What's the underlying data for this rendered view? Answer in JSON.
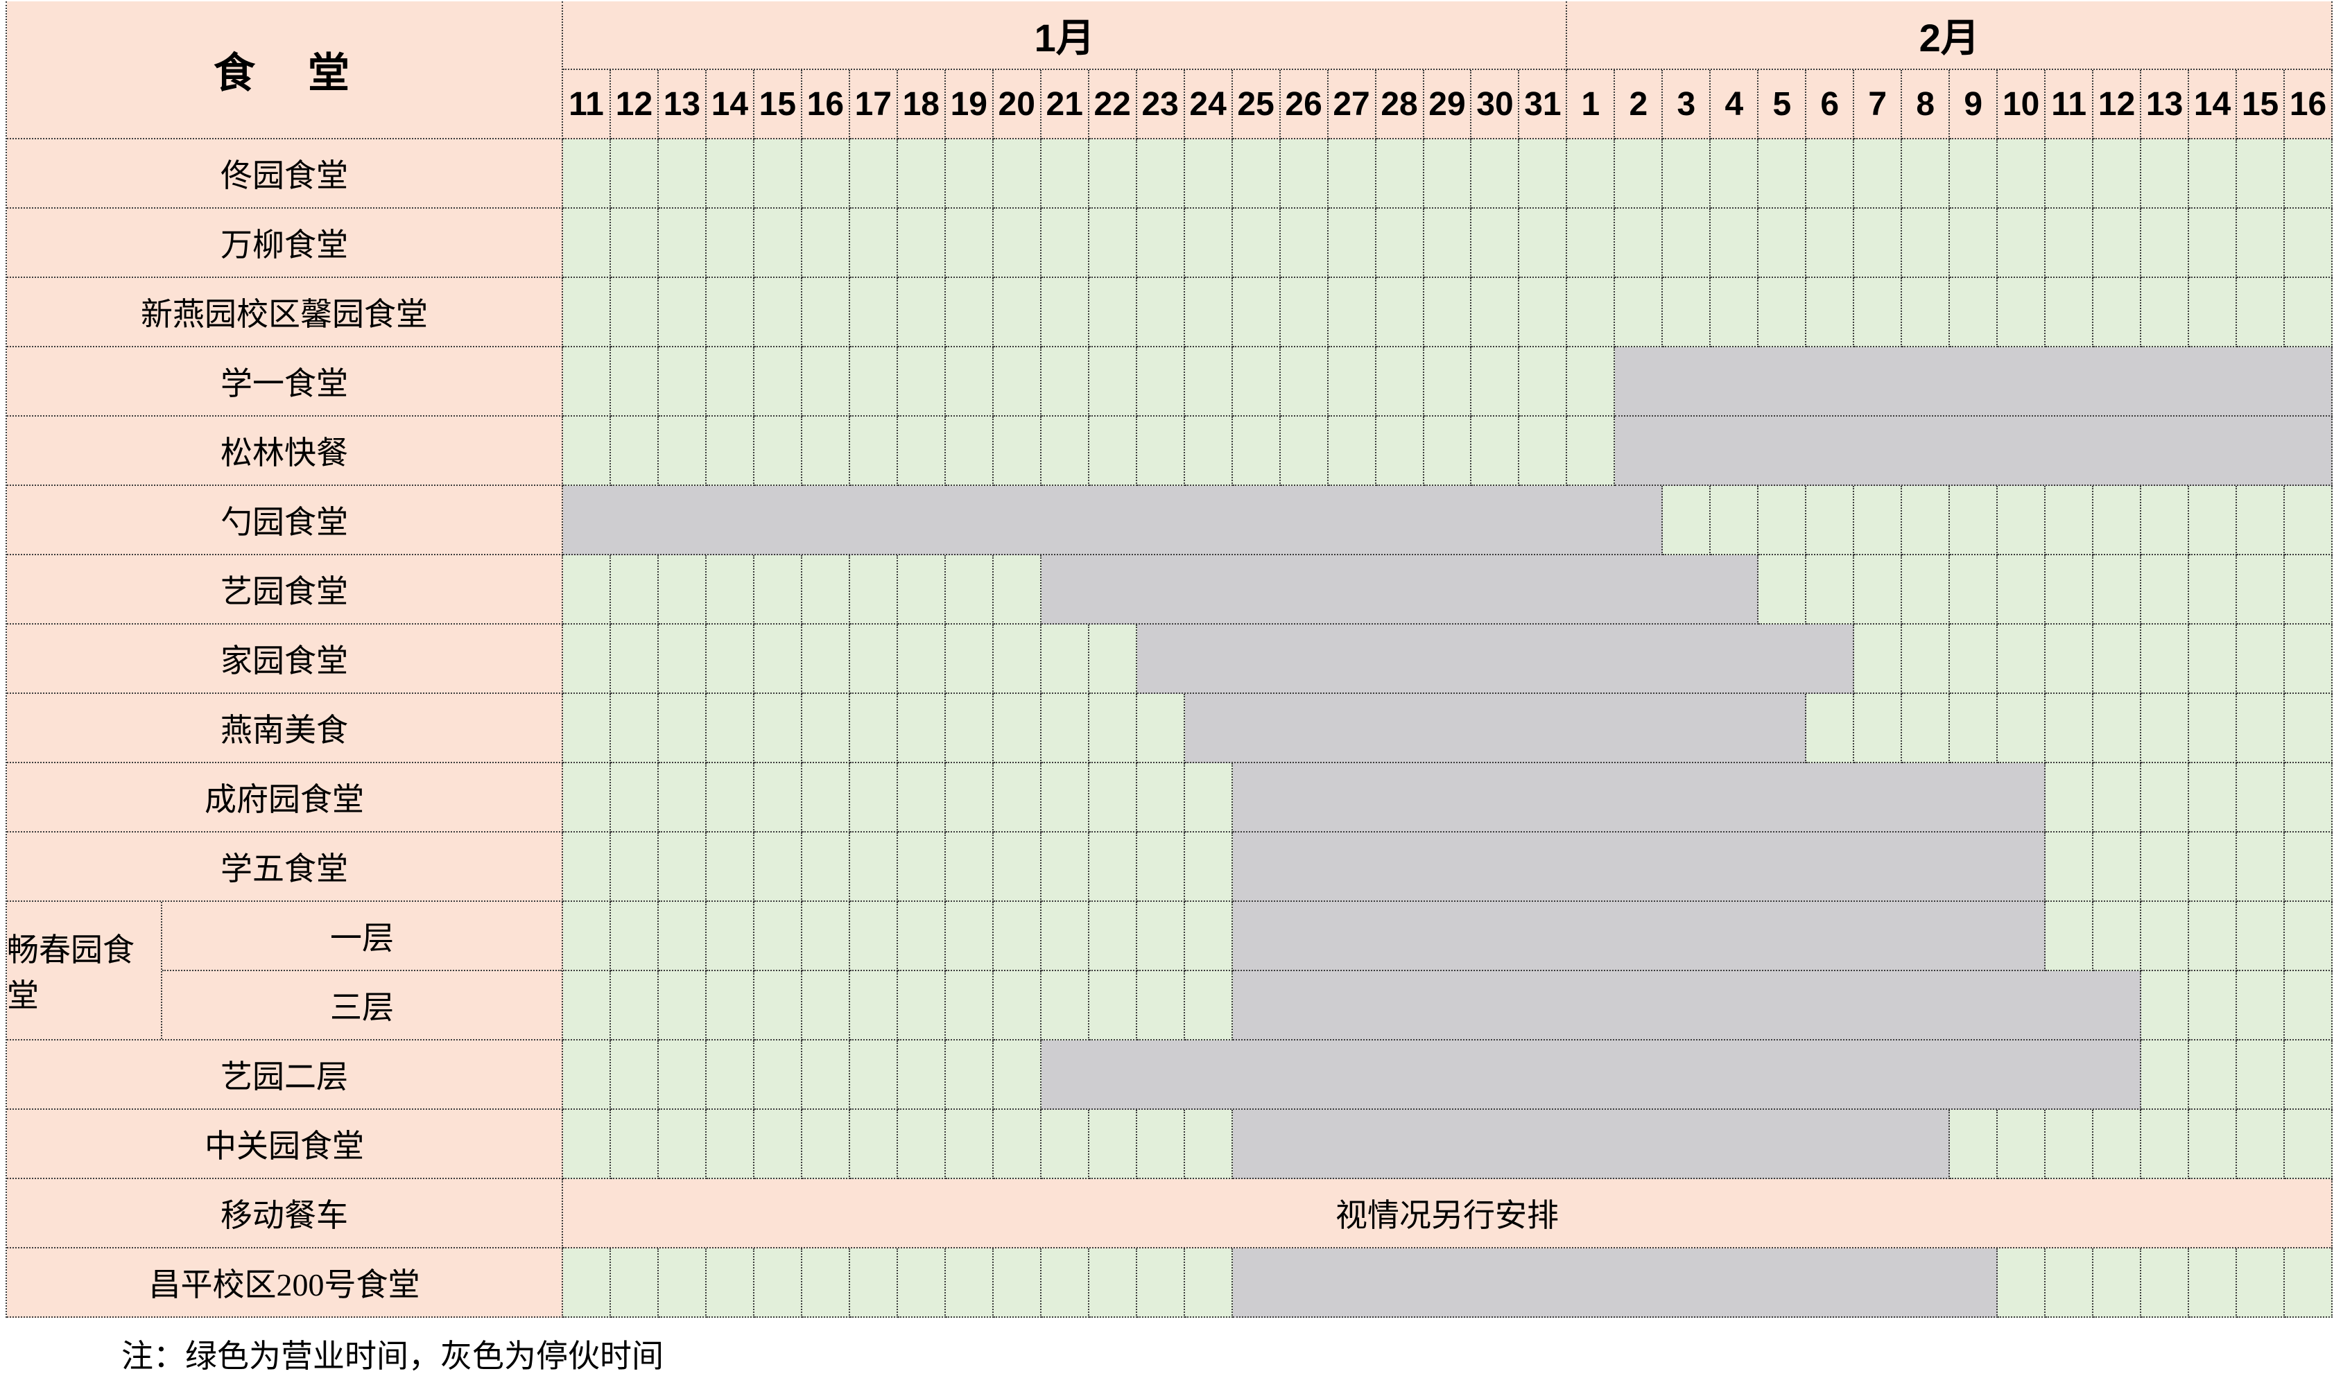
{
  "title_cell": "食　堂",
  "months": [
    {
      "label": "1月",
      "days": 21
    },
    {
      "label": "2月",
      "days": 16
    }
  ],
  "day_labels": [
    "11",
    "12",
    "13",
    "14",
    "15",
    "16",
    "17",
    "18",
    "19",
    "20",
    "21",
    "22",
    "23",
    "24",
    "25",
    "26",
    "27",
    "28",
    "29",
    "30",
    "31",
    "1",
    "2",
    "3",
    "4",
    "5",
    "6",
    "7",
    "8",
    "9",
    "10",
    "11",
    "12",
    "13",
    "14",
    "15",
    "16"
  ],
  "rows": [
    {
      "type": "normal",
      "name": "佟园食堂",
      "segments": [
        {
          "status": "open",
          "days": 37
        }
      ]
    },
    {
      "type": "normal",
      "name": "万柳食堂",
      "segments": [
        {
          "status": "open",
          "days": 37
        }
      ]
    },
    {
      "type": "normal",
      "name": "新燕园校区馨园食堂",
      "segments": [
        {
          "status": "open",
          "days": 37
        }
      ]
    },
    {
      "type": "normal",
      "name": "学一食堂",
      "segments": [
        {
          "status": "open",
          "days": 22
        },
        {
          "status": "closed",
          "days": 15
        }
      ]
    },
    {
      "type": "normal",
      "name": "松林快餐",
      "segments": [
        {
          "status": "open",
          "days": 22
        },
        {
          "status": "closed",
          "days": 15
        }
      ]
    },
    {
      "type": "normal",
      "name": "勺园食堂",
      "segments": [
        {
          "status": "closed",
          "days": 23
        },
        {
          "status": "open",
          "days": 14
        }
      ]
    },
    {
      "type": "normal",
      "name": "艺园食堂",
      "segments": [
        {
          "status": "open",
          "days": 10
        },
        {
          "status": "closed",
          "days": 15
        },
        {
          "status": "open",
          "days": 12
        }
      ]
    },
    {
      "type": "normal",
      "name": "家园食堂",
      "segments": [
        {
          "status": "open",
          "days": 12
        },
        {
          "status": "closed",
          "days": 15
        },
        {
          "status": "open",
          "days": 10
        }
      ]
    },
    {
      "type": "normal",
      "name": "燕南美食",
      "segments": [
        {
          "status": "open",
          "days": 13
        },
        {
          "status": "closed",
          "days": 13
        },
        {
          "status": "open",
          "days": 11
        }
      ]
    },
    {
      "type": "normal",
      "name": "成府园食堂",
      "segments": [
        {
          "status": "open",
          "days": 14
        },
        {
          "status": "closed",
          "days": 17
        },
        {
          "status": "open",
          "days": 6
        }
      ]
    },
    {
      "type": "normal",
      "name": "学五食堂",
      "segments": [
        {
          "status": "open",
          "days": 14
        },
        {
          "status": "closed",
          "days": 17
        },
        {
          "status": "open",
          "days": 6
        }
      ]
    },
    {
      "type": "group",
      "name": "畅春园食堂",
      "floors": [
        {
          "label": "一层",
          "segments": [
            {
              "status": "open",
              "days": 14
            },
            {
              "status": "closed",
              "days": 17
            },
            {
              "status": "open",
              "days": 6
            }
          ]
        },
        {
          "label": "三层",
          "segments": [
            {
              "status": "open",
              "days": 14
            },
            {
              "status": "closed",
              "days": 19
            },
            {
              "status": "open",
              "days": 4
            }
          ]
        }
      ]
    },
    {
      "type": "normal",
      "name": "艺园二层",
      "segments": [
        {
          "status": "open",
          "days": 10
        },
        {
          "status": "closed",
          "days": 23
        },
        {
          "status": "open",
          "days": 4
        }
      ]
    },
    {
      "type": "normal",
      "name": "中关园食堂",
      "segments": [
        {
          "status": "open",
          "days": 14
        },
        {
          "status": "closed",
          "days": 15
        },
        {
          "status": "open",
          "days": 8
        }
      ]
    },
    {
      "type": "special",
      "name": "移动餐车",
      "note": "视情况另行安排",
      "segments": [
        {
          "status": "tbd",
          "days": 37
        }
      ]
    },
    {
      "type": "normal",
      "name": "昌平校区200号食堂",
      "segments": [
        {
          "status": "open",
          "days": 14
        },
        {
          "status": "closed",
          "days": 16
        },
        {
          "status": "open",
          "days": 7
        }
      ]
    }
  ],
  "legend_note": "注：绿色为营业时间，灰色为停伙时间",
  "colors": {
    "open_green": "#e2efda",
    "closed_gray": "#cecdd0",
    "header_pink": "#fce2d5",
    "grid_line": "#3b3b3b",
    "background": "#ffffff",
    "text": "#000000"
  }
}
